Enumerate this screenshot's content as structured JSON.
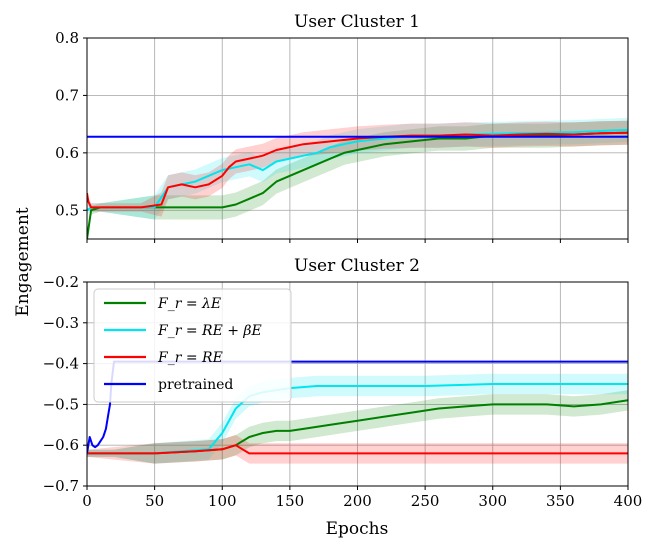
{
  "chart_data": [
    {
      "type": "line",
      "title": "User Cluster 1",
      "xlabel": "Epochs",
      "ylabel": "Engagement",
      "xlim": [
        0,
        400
      ],
      "ylim": [
        0.45,
        0.8
      ],
      "xticks": [
        0,
        50,
        100,
        150,
        200,
        250,
        300,
        350,
        400
      ],
      "yticks": [
        0.5,
        0.6,
        0.7,
        0.8
      ],
      "ytick_labels": [
        "0.5",
        "0.6",
        "0.7",
        "0.8"
      ],
      "grid": true,
      "series": [
        {
          "name": "F_r = λE",
          "color": "#008000",
          "x": [
            0,
            3,
            10,
            50,
            60,
            80,
            100,
            110,
            120,
            130,
            140,
            150,
            160,
            170,
            180,
            190,
            200,
            220,
            240,
            260,
            280,
            300,
            320,
            340,
            360,
            380,
            400
          ],
          "y": [
            0.45,
            0.5,
            0.505,
            0.505,
            0.505,
            0.505,
            0.505,
            0.51,
            0.52,
            0.53,
            0.55,
            0.56,
            0.57,
            0.58,
            0.59,
            0.6,
            0.605,
            0.615,
            0.62,
            0.625,
            0.625,
            0.63,
            0.63,
            0.63,
            0.632,
            0.634,
            0.635
          ]
        },
        {
          "name": "F_r = RE + βE",
          "color": "#00e5ee",
          "x": [
            0,
            3,
            10,
            50,
            60,
            70,
            80,
            90,
            100,
            110,
            120,
            130,
            140,
            150,
            160,
            170,
            180,
            190,
            200,
            220,
            240,
            260,
            280,
            300,
            320,
            340,
            360,
            380,
            400
          ],
          "y": [
            0.5,
            0.505,
            0.505,
            0.505,
            0.54,
            0.545,
            0.55,
            0.56,
            0.57,
            0.575,
            0.58,
            0.57,
            0.585,
            0.59,
            0.595,
            0.6,
            0.61,
            0.615,
            0.62,
            0.625,
            0.63,
            0.63,
            0.632,
            0.633,
            0.634,
            0.635,
            0.636,
            0.638,
            0.64
          ]
        },
        {
          "name": "F_r = RE",
          "color": "#ff0000",
          "x": [
            0,
            1,
            3,
            10,
            40,
            55,
            60,
            70,
            80,
            90,
            100,
            105,
            110,
            120,
            130,
            140,
            150,
            160,
            180,
            200,
            220,
            240,
            260,
            280,
            300,
            320,
            340,
            360,
            380,
            400
          ],
          "y": [
            0.53,
            0.515,
            0.505,
            0.505,
            0.505,
            0.51,
            0.54,
            0.545,
            0.54,
            0.545,
            0.56,
            0.575,
            0.585,
            0.59,
            0.595,
            0.605,
            0.61,
            0.615,
            0.62,
            0.625,
            0.628,
            0.63,
            0.63,
            0.632,
            0.63,
            0.632,
            0.633,
            0.632,
            0.634,
            0.635
          ]
        },
        {
          "name": "pretrained",
          "color": "#0000ff",
          "x": [
            0,
            400
          ],
          "y": [
            0.628,
            0.628
          ]
        }
      ]
    },
    {
      "type": "line",
      "title": "User Cluster 2",
      "xlabel": "Epochs",
      "ylabel": "Engagement",
      "xlim": [
        0,
        400
      ],
      "ylim": [
        -0.7,
        -0.2
      ],
      "xticks": [
        0,
        50,
        100,
        150,
        200,
        250,
        300,
        350,
        400
      ],
      "xtick_labels": [
        "0",
        "50",
        "100",
        "150",
        "200",
        "250",
        "300",
        "350",
        "400"
      ],
      "yticks": [
        -0.7,
        -0.6,
        -0.5,
        -0.4,
        -0.3,
        -0.2
      ],
      "ytick_labels": [
        "−0.7",
        "−0.6",
        "−0.5",
        "−0.4",
        "−0.3",
        "−0.2"
      ],
      "grid": true,
      "legend_position": "upper-left",
      "series": [
        {
          "name": "F_r = λE",
          "color": "#008000",
          "x": [
            0,
            20,
            50,
            80,
            100,
            110,
            120,
            130,
            140,
            150,
            160,
            180,
            200,
            220,
            240,
            260,
            280,
            300,
            320,
            340,
            360,
            380,
            400
          ],
          "y": [
            -0.62,
            -0.62,
            -0.62,
            -0.615,
            -0.61,
            -0.6,
            -0.58,
            -0.57,
            -0.565,
            -0.565,
            -0.56,
            -0.55,
            -0.54,
            -0.53,
            -0.52,
            -0.51,
            -0.505,
            -0.5,
            -0.5,
            -0.5,
            -0.505,
            -0.5,
            -0.49
          ]
        },
        {
          "name": "F_r = RE + βE",
          "color": "#00e5ee",
          "x": [
            0,
            20,
            50,
            70,
            90,
            100,
            110,
            120,
            130,
            140,
            150,
            170,
            200,
            250,
            300,
            350,
            400
          ],
          "y": [
            -0.62,
            -0.62,
            -0.62,
            -0.615,
            -0.61,
            -0.57,
            -0.51,
            -0.48,
            -0.47,
            -0.465,
            -0.46,
            -0.455,
            -0.455,
            -0.455,
            -0.45,
            -0.45,
            -0.45
          ]
        },
        {
          "name": "F_r = RE",
          "color": "#ff0000",
          "x": [
            0,
            50,
            80,
            100,
            110,
            115,
            120,
            140,
            160,
            200,
            250,
            300,
            350,
            400
          ],
          "y": [
            -0.62,
            -0.62,
            -0.615,
            -0.61,
            -0.6,
            -0.61,
            -0.62,
            -0.62,
            -0.62,
            -0.62,
            -0.62,
            -0.62,
            -0.62,
            -0.62
          ]
        },
        {
          "name": "pretrained",
          "color": "#0000ff",
          "x": [
            0,
            2,
            4,
            6,
            8,
            10,
            12,
            14,
            16,
            17,
            18,
            20,
            400
          ],
          "y": [
            -0.62,
            -0.58,
            -0.6,
            -0.605,
            -0.6,
            -0.59,
            -0.58,
            -0.56,
            -0.52,
            -0.5,
            -0.45,
            -0.395,
            -0.395
          ]
        }
      ]
    }
  ],
  "legend": {
    "items": [
      {
        "label": "F_r = λE",
        "color": "#008000"
      },
      {
        "label": "F_r = RE + βE",
        "color": "#00e5ee"
      },
      {
        "label": "F_r = RE",
        "color": "#ff0000"
      },
      {
        "label": "pretrained",
        "color": "#0000ff"
      }
    ]
  }
}
